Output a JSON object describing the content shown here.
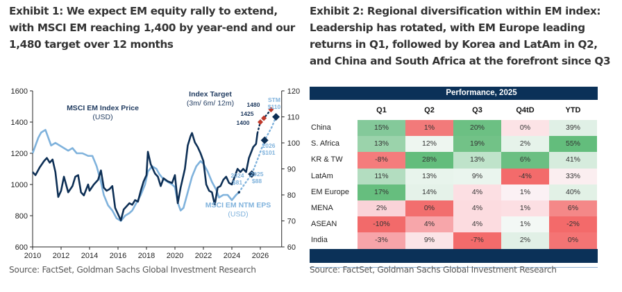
{
  "exhibit1": {
    "title": "Exhibit 1: We expect EM equity rally to extend, with MSCI EM reaching 1,400 by year-end and our 1,480 target over 12 months",
    "source": "Source: FactSet, Goldman Sachs Global Investment Research"
  },
  "exhibit2": {
    "title": "Exhibit 2: Regional diversification within EM index: Leadership has rotated, with EM Europe leading returns in Q1, followed by Korea and LatAm in Q2, and China and South Africa at the forefront since Q3",
    "source": "Source: FactSet, Goldman Sachs Global Investment Research"
  },
  "colors": {
    "dark_line": "#0d2f55",
    "light_line": "#7fb2dc",
    "target_marker": "#c0392b",
    "eps_marker": "#0d2f55",
    "banner": "#0b3158"
  },
  "chart_data": [
    {
      "type": "line",
      "title": "",
      "xlabel": "",
      "ylabel_left": "MSCI EM Index Price (USD)",
      "ylabel_right": "MSCI EM NTM EPS (USD)",
      "x_ticks": [
        "2010",
        "2012",
        "2014",
        "2016",
        "2018",
        "2020",
        "2022",
        "2024",
        "2026"
      ],
      "xlim": [
        2010,
        2027.5
      ],
      "ylim_left": [
        600,
        1600
      ],
      "y_ticks_left": [
        "600",
        "800",
        "1000",
        "1200",
        "1400",
        "1600"
      ],
      "ylim_right": [
        60,
        120
      ],
      "y_ticks_right": [
        "60",
        "70",
        "80",
        "90",
        "100",
        "110",
        "120"
      ],
      "grid": false,
      "annotations": {
        "price_label": "MSCI EM Index Price",
        "price_unit": "(USD)",
        "eps_label": "MSCI EM NTM EPS",
        "eps_unit": "(USD)",
        "target_label": "Index Target",
        "target_sub": "(3m/ 6m/ 12m)",
        "t1400": "1400",
        "t1425": "1425",
        "t1480": "1480",
        "eps2024_year": "2024",
        "eps2024_val": "$81",
        "eps2025_year": "2025",
        "eps2025_val": "$88",
        "eps2026_year": "2026",
        "eps2026_val": "$101",
        "epsstm_year": "STM",
        "epsstm_val": "$110"
      },
      "series": [
        {
          "name": "MSCI EM Index Price",
          "axis": "left",
          "points": [
            [
              2010.0,
              1080
            ],
            [
              2010.2,
              1060
            ],
            [
              2010.5,
              1110
            ],
            [
              2010.8,
              1150
            ],
            [
              2011.0,
              1170
            ],
            [
              2011.2,
              1140
            ],
            [
              2011.4,
              1160
            ],
            [
              2011.6,
              1080
            ],
            [
              2011.8,
              920
            ],
            [
              2012.0,
              960
            ],
            [
              2012.2,
              1050
            ],
            [
              2012.5,
              950
            ],
            [
              2012.8,
              990
            ],
            [
              2013.0,
              1050
            ],
            [
              2013.2,
              1060
            ],
            [
              2013.4,
              950
            ],
            [
              2013.6,
              930
            ],
            [
              2013.9,
              1000
            ],
            [
              2014.0,
              960
            ],
            [
              2014.3,
              1000
            ],
            [
              2014.6,
              1030
            ],
            [
              2014.8,
              1090
            ],
            [
              2015.0,
              980
            ],
            [
              2015.2,
              960
            ],
            [
              2015.4,
              970
            ],
            [
              2015.6,
              990
            ],
            [
              2015.8,
              850
            ],
            [
              2016.0,
              810
            ],
            [
              2016.2,
              770
            ],
            [
              2016.4,
              840
            ],
            [
              2016.6,
              860
            ],
            [
              2016.8,
              880
            ],
            [
              2017.0,
              870
            ],
            [
              2017.2,
              900
            ],
            [
              2017.4,
              890
            ],
            [
              2017.6,
              960
            ],
            [
              2017.8,
              1020
            ],
            [
              2018.0,
              1060
            ],
            [
              2018.1,
              1210
            ],
            [
              2018.3,
              1130
            ],
            [
              2018.6,
              1070
            ],
            [
              2018.8,
              1050
            ],
            [
              2019.0,
              990
            ],
            [
              2019.2,
              1040
            ],
            [
              2019.5,
              1020
            ],
            [
              2019.8,
              1010
            ],
            [
              2020.0,
              1060
            ],
            [
              2020.2,
              880
            ],
            [
              2020.4,
              980
            ],
            [
              2020.7,
              1100
            ],
            [
              2020.9,
              1250
            ],
            [
              2021.1,
              1310
            ],
            [
              2021.2,
              1330
            ],
            [
              2021.4,
              1270
            ],
            [
              2021.6,
              1240
            ],
            [
              2021.8,
              1200
            ],
            [
              2022.0,
              1150
            ],
            [
              2022.2,
              1000
            ],
            [
              2022.4,
              960
            ],
            [
              2022.6,
              950
            ],
            [
              2022.8,
              870
            ],
            [
              2023.0,
              980
            ],
            [
              2023.2,
              990
            ],
            [
              2023.4,
              1030
            ],
            [
              2023.6,
              1050
            ],
            [
              2023.8,
              1010
            ],
            [
              2024.0,
              1000
            ],
            [
              2024.2,
              1050
            ],
            [
              2024.4,
              1100
            ],
            [
              2024.6,
              1080
            ],
            [
              2024.8,
              1100
            ],
            [
              2025.0,
              1080
            ],
            [
              2025.2,
              1170
            ],
            [
              2025.5,
              1240
            ],
            [
              2025.7,
              1260
            ],
            [
              2025.8,
              1330
            ]
          ]
        },
        {
          "name": "MSCI EM NTM EPS",
          "axis": "right",
          "points": [
            [
              2010.0,
              96
            ],
            [
              2010.2,
              99
            ],
            [
              2010.4,
              102
            ],
            [
              2010.6,
              104
            ],
            [
              2010.9,
              105
            ],
            [
              2011.1,
              102
            ],
            [
              2011.3,
              99
            ],
            [
              2011.6,
              100
            ],
            [
              2011.9,
              99
            ],
            [
              2012.2,
              98
            ],
            [
              2012.5,
              97
            ],
            [
              2012.8,
              98
            ],
            [
              2013.1,
              96
            ],
            [
              2013.5,
              96
            ],
            [
              2013.9,
              95
            ],
            [
              2014.2,
              95
            ],
            [
              2014.5,
              91
            ],
            [
              2014.8,
              85
            ],
            [
              2015.0,
              80
            ],
            [
              2015.3,
              76
            ],
            [
              2015.6,
              74
            ],
            [
              2015.9,
              71
            ],
            [
              2016.2,
              70
            ],
            [
              2016.5,
              72
            ],
            [
              2016.8,
              73
            ],
            [
              2017.0,
              74
            ],
            [
              2017.3,
              77
            ],
            [
              2017.6,
              80
            ],
            [
              2017.9,
              84
            ],
            [
              2018.1,
              89
            ],
            [
              2018.4,
              91
            ],
            [
              2018.7,
              90
            ],
            [
              2018.9,
              88
            ],
            [
              2019.2,
              86
            ],
            [
              2019.5,
              85
            ],
            [
              2019.8,
              84
            ],
            [
              2020.0,
              83
            ],
            [
              2020.2,
              77
            ],
            [
              2020.4,
              74
            ],
            [
              2020.6,
              75
            ],
            [
              2020.9,
              81
            ],
            [
              2021.2,
              87
            ],
            [
              2021.5,
              91
            ],
            [
              2021.8,
              93
            ],
            [
              2022.0,
              92
            ],
            [
              2022.3,
              89
            ],
            [
              2022.6,
              85
            ],
            [
              2022.9,
              82
            ],
            [
              2023.1,
              79
            ],
            [
              2023.4,
              80
            ],
            [
              2023.7,
              80
            ],
            [
              2024.0,
              78
            ],
            [
              2024.3,
              80
            ],
            [
              2024.5,
              81
            ]
          ]
        }
      ],
      "projections": {
        "index_dotted": [
          [
            2025.8,
            1330
          ],
          [
            2026.0,
            1400
          ],
          [
            2026.25,
            1425
          ],
          [
            2026.75,
            1480
          ]
        ],
        "index_targets": [
          {
            "x": 2026.0,
            "y": 1400
          },
          {
            "x": 2026.25,
            "y": 1425
          },
          {
            "x": 2026.75,
            "y": 1480
          }
        ],
        "eps_dotted": [
          [
            2024.5,
            81
          ],
          [
            2025.0,
            85
          ],
          [
            2025.4,
            88
          ],
          [
            2025.9,
            95
          ],
          [
            2026.3,
            101
          ],
          [
            2026.8,
            106
          ],
          [
            2027.1,
            110
          ]
        ],
        "eps_targets": [
          {
            "x": 2024.5,
            "y": 81
          },
          {
            "x": 2025.4,
            "y": 88
          },
          {
            "x": 2026.3,
            "y": 101
          },
          {
            "x": 2027.1,
            "y": 110
          }
        ]
      }
    },
    {
      "type": "table",
      "title": "Performance, 2025",
      "columns": [
        "Q1",
        "Q2",
        "Q3",
        "Q4tD",
        "YTD"
      ],
      "rows": [
        {
          "label": "China",
          "values": [
            "15%",
            "1%",
            "20%",
            "0%",
            "39%"
          ],
          "colors": [
            "#84c99a",
            "#f27a7a",
            "#6cc083",
            "#fce3e6",
            "#e0f0e6"
          ]
        },
        {
          "label": "S. Africa",
          "values": [
            "13%",
            "12%",
            "19%",
            "2%",
            "55%"
          ],
          "colors": [
            "#9bd3ab",
            "#eef6f0",
            "#72c287",
            "#e6f3ea",
            "#63bd7c"
          ]
        },
        {
          "label": "KR & TW",
          "values": [
            "-8%",
            "28%",
            "13%",
            "6%",
            "41%"
          ],
          "colors": [
            "#f47c7c",
            "#63bd7c",
            "#bfe3ca",
            "#6bbf82",
            "#d6ecdd"
          ]
        },
        {
          "label": "LatAm",
          "values": [
            "11%",
            "13%",
            "9%",
            "-4%",
            "33%"
          ],
          "colors": [
            "#b3ddc0",
            "#e8f4ec",
            "#eaf5ee",
            "#f36b6b",
            "#fbeef0"
          ]
        },
        {
          "label": "EM Europe",
          "values": [
            "17%",
            "14%",
            "4%",
            "1%",
            "40%"
          ],
          "colors": [
            "#66be7e",
            "#e5f2e9",
            "#fcdfe3",
            "#fbf1f4",
            "#e2f1e6"
          ]
        },
        {
          "label": "MENA",
          "values": [
            "2%",
            "0%",
            "4%",
            "1%",
            "6%"
          ],
          "colors": [
            "#fad3d8",
            "#f26e6e",
            "#fcdce0",
            "#fcdfe3",
            "#f48888"
          ]
        },
        {
          "label": "ASEAN",
          "values": [
            "-10%",
            "4%",
            "4%",
            "1%",
            "-2%"
          ],
          "colors": [
            "#f26a6a",
            "#f7a6aa",
            "#fcdce0",
            "#f3f8f5",
            "#f36a6a"
          ]
        },
        {
          "label": "India",
          "values": [
            "-3%",
            "9%",
            "-7%",
            "2%",
            "0%"
          ],
          "colors": [
            "#f7a4a9",
            "#fbe4e7",
            "#f36b6b",
            "#e1f0e6",
            "#f47474"
          ]
        }
      ]
    }
  ]
}
